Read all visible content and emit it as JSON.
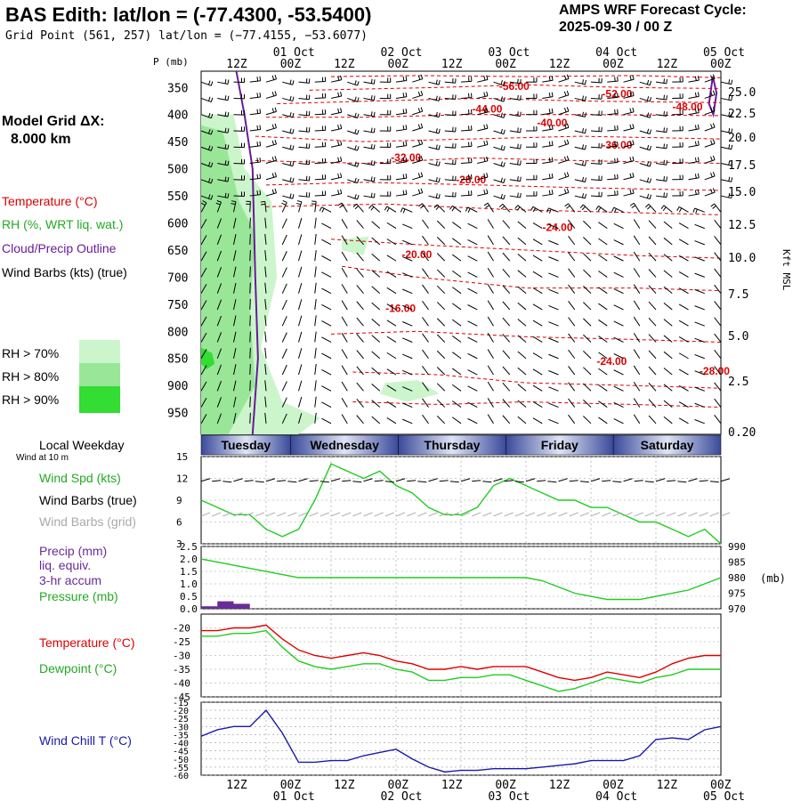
{
  "header": {
    "title": "BAS Edith:  lat/lon = (-77.4300, -53.5400)",
    "grid_point": "Grid Point (561, 257) lat/lon = (−77.4155, −53.6077)",
    "cycle_line1": "AMPS WRF Forecast Cycle:",
    "cycle_line2": "2025-09-30 / 00  Z"
  },
  "legend": {
    "model_grid_line1": "Model Grid ΔX:",
    "model_grid_line2": "8.000 km",
    "temperature": "Temperature (°C)",
    "rh": "RH (%, WRT liq. wat.)",
    "cloud": "Cloud/Precip Outline",
    "barbs": "Wind Barbs (kts) (true)",
    "rh70": "RH > 70%",
    "rh80": "RH > 80%",
    "rh90": "RH > 90%",
    "local_weekday": "Local Weekday",
    "wind10m": "Wind at 10 m",
    "wind_spd": "Wind Spd (kts)",
    "wind_barbs_true": "Wind Barbs (true)",
    "wind_barbs_grid": "Wind Barbs (grid)",
    "precip1": "Precip (mm)",
    "precip2": "liq. equiv.",
    "precip3": "3-hr accum",
    "pressure": "Pressure (mb)",
    "temp2": "Temperature (°C)",
    "dewpoint": "Dewpoint (°C)",
    "windchill": "Wind Chill T (°C)"
  },
  "colors": {
    "temperature": "#dd0000",
    "rh70": "#ccf5cc",
    "rh80": "#99e699",
    "rh90": "#33dd33",
    "cloud": "#6a1b9a",
    "wind_spd": "#22cc22",
    "precip": "#6a2b9a",
    "pressure": "#22cc22",
    "dewpoint": "#22cc22",
    "windchill": "#1a1aaa",
    "barb_grid": "#aaaaaa",
    "day_band": "#5a6ab0"
  },
  "top_axis": {
    "p_label": "P (mb)",
    "hour_labels": [
      "12Z",
      "00Z",
      "12Z",
      "00Z",
      "12Z",
      "00Z",
      "12Z",
      "00Z",
      "12Z",
      "00Z"
    ],
    "date_labels": [
      "01 Oct",
      "02 Oct",
      "03 Oct",
      "04 Oct",
      "05 Oct"
    ]
  },
  "bottom_axis": {
    "hour_labels": [
      "12Z",
      "00Z",
      "12Z",
      "00Z",
      "12Z",
      "00Z",
      "12Z",
      "00Z",
      "12Z",
      "00Z"
    ],
    "date_labels": [
      "01 Oct",
      "02 Oct",
      "03 Oct",
      "04 Oct",
      "05 Oct"
    ]
  },
  "right_axis_label": "Kft MSL",
  "pressure_unit_label": "(mb)",
  "weekdays": [
    "Tuesday",
    "Wednesday",
    "Thursday",
    "Friday",
    "Saturday"
  ],
  "chart_data": [
    {
      "type": "heatmap",
      "title": "Time-height cross section",
      "pressure_ticks": [
        350,
        400,
        450,
        500,
        550,
        600,
        650,
        700,
        750,
        800,
        850,
        900,
        950
      ],
      "height_ticks_kft": [
        "25.0",
        "22.5",
        "20.0",
        "17.5",
        "15.0",
        "12.5",
        "10.0",
        "7.5",
        "5.0",
        "2.5",
        "0.20"
      ],
      "temperature_contour_labels": [
        "-56.00",
        "-52.00",
        "-48.00",
        "-44.00",
        "-40.00",
        "-36.00",
        "-32.00",
        "-28.00",
        "-24.00",
        "-20.00",
        "-16.00",
        "-24.00",
        "-28.00"
      ],
      "x_hours": [
        0,
        96
      ]
    },
    {
      "type": "line",
      "name": "wind_speed",
      "ylim": [
        3,
        15
      ],
      "y_ticks": [
        15,
        12,
        9,
        6,
        3
      ],
      "x": [
        0,
        3,
        6,
        9,
        12,
        15,
        18,
        21,
        24,
        27,
        30,
        33,
        36,
        39,
        42,
        45,
        48,
        51,
        54,
        57,
        60,
        63,
        66,
        69,
        72,
        75,
        78,
        81,
        84,
        87,
        90,
        93,
        96
      ],
      "values": [
        9,
        8,
        7,
        7,
        5,
        4,
        5,
        9,
        14,
        13,
        12,
        13,
        11,
        10,
        8,
        7,
        7,
        8,
        11,
        12,
        11,
        10,
        9,
        9,
        8,
        8,
        7,
        6,
        6,
        5,
        4,
        5,
        3
      ]
    },
    {
      "type": "line",
      "name": "pressure",
      "ylim": [
        970,
        990
      ],
      "y_ticks_right": [
        990,
        985,
        980,
        975,
        970
      ],
      "y_ticks_left": [
        "2.5",
        "2.0",
        "1.5",
        "1.0",
        "0.5",
        "0.0"
      ],
      "x": [
        0,
        3,
        6,
        9,
        12,
        15,
        18,
        21,
        24,
        27,
        30,
        33,
        36,
        39,
        42,
        45,
        48,
        51,
        54,
        57,
        60,
        63,
        66,
        69,
        72,
        75,
        78,
        81,
        84,
        87,
        90,
        93,
        96
      ],
      "values": [
        986,
        985,
        984,
        983,
        982,
        981,
        980,
        980,
        980,
        980,
        980,
        980,
        980,
        980,
        980,
        980,
        980,
        980,
        980,
        980,
        980,
        979,
        977,
        975,
        974,
        973,
        973,
        973,
        974,
        975,
        976,
        978,
        980
      ],
      "precip_bars": [
        {
          "x": 1.5,
          "value": 0.1
        },
        {
          "x": 4.5,
          "value": 0.3
        },
        {
          "x": 7.5,
          "value": 0.2
        }
      ]
    },
    {
      "type": "line",
      "name": "temperature_dewpoint",
      "ylim": [
        -45,
        -15
      ],
      "y_ticks": [
        -20,
        -25,
        -30,
        -35,
        -40,
        -45
      ],
      "x": [
        0,
        3,
        6,
        9,
        12,
        15,
        18,
        21,
        24,
        27,
        30,
        33,
        36,
        39,
        42,
        45,
        48,
        51,
        54,
        57,
        60,
        63,
        66,
        69,
        72,
        75,
        78,
        81,
        84,
        87,
        90,
        93,
        96
      ],
      "temperature": [
        -21,
        -21,
        -20,
        -20,
        -19,
        -24,
        -28,
        -30,
        -31,
        -30,
        -29,
        -30,
        -32,
        -33,
        -35,
        -35,
        -34,
        -35,
        -34,
        -34,
        -34,
        -36,
        -38,
        -39,
        -38,
        -36,
        -37,
        -38,
        -36,
        -33,
        -31,
        -30,
        -30
      ],
      "dewpoint": [
        -23,
        -23,
        -22,
        -22,
        -21,
        -27,
        -32,
        -34,
        -35,
        -34,
        -33,
        -33,
        -35,
        -36,
        -39,
        -39,
        -38,
        -38,
        -37,
        -37,
        -39,
        -41,
        -43,
        -42,
        -40,
        -38,
        -39,
        -40,
        -38,
        -37,
        -35,
        -35,
        -35
      ]
    },
    {
      "type": "line",
      "name": "wind_chill",
      "ylim": [
        -60,
        -15
      ],
      "y_ticks": [
        -15,
        -20,
        -25,
        -30,
        -35,
        -40,
        -45,
        -50,
        -55,
        -60
      ],
      "x": [
        0,
        3,
        6,
        9,
        12,
        15,
        18,
        21,
        24,
        27,
        30,
        33,
        36,
        39,
        42,
        45,
        48,
        51,
        54,
        57,
        60,
        63,
        66,
        69,
        72,
        75,
        78,
        81,
        84,
        87,
        90,
        93,
        96
      ],
      "values": [
        -36,
        -32,
        -30,
        -30,
        -20,
        -34,
        -52,
        -52,
        -51,
        -51,
        -48,
        -46,
        -44,
        -50,
        -55,
        -58,
        -57,
        -57,
        -56,
        -56,
        -56,
        -55,
        -54,
        -53,
        -51,
        -51,
        -51,
        -48,
        -38,
        -37,
        -38,
        -32,
        -30
      ]
    }
  ]
}
